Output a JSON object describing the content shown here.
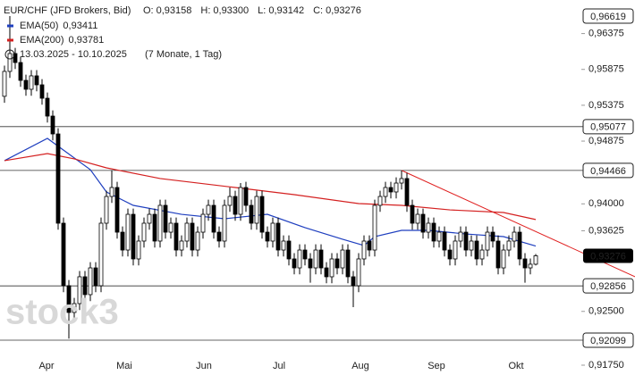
{
  "chart_data": {
    "type": "candlestick",
    "title": "EUR/CHF (JFD Brokers, Bid)",
    "ohlc_header": [
      {
        "key": "O:",
        "value": 0.93158,
        "label": "0,93158"
      },
      {
        "key": "H:",
        "value": 0.933,
        "label": "0,93300"
      },
      {
        "key": "L:",
        "value": 0.93142,
        "label": "0,93142"
      },
      {
        "key": "C:",
        "value": 0.93276,
        "label": "0,93276"
      }
    ],
    "date_range": "13.03.2025 - 10.10.2025",
    "period": "(7 Monate, 1 Tag)",
    "watermark": "stock3",
    "x_labels": [
      "Apr",
      "Mai",
      "Jun",
      "Jul",
      "Aug",
      "Sep",
      "Okt"
    ],
    "ylim": [
      0.91613,
      0.96843
    ],
    "yticks": [
      {
        "value": 0.96375,
        "label": "0,96375"
      },
      {
        "value": 0.95875,
        "label": "0,95875"
      },
      {
        "value": 0.95375,
        "label": "0,95375"
      },
      {
        "value": 0.94875,
        "label": "0,94875"
      },
      {
        "value": 0.94,
        "label": "0,94000"
      },
      {
        "value": 0.93625,
        "label": "0,93625"
      },
      {
        "value": 0.925,
        "label": "0,92500"
      },
      {
        "value": 0.9175,
        "label": "0,91750"
      }
    ],
    "levels": [
      {
        "value": 0.96619,
        "label": "0,96619",
        "line": false
      },
      {
        "value": 0.95077,
        "label": "0,95077",
        "line": true
      },
      {
        "value": 0.94466,
        "label": "0,94466",
        "line": true
      },
      {
        "value": 0.92856,
        "label": "0,92856",
        "line": true
      },
      {
        "value": 0.92099,
        "label": "0,92099",
        "line": true
      }
    ],
    "last_price": {
      "value": 0.93276,
      "label": "0,93276"
    },
    "up_color": "#ffffff",
    "down_color": "#000000",
    "open": [
      0.955,
      0.95847,
      0.96096,
      0.95971,
      0.95722,
      0.95598,
      0.95785,
      0.9566,
      0.95473,
      0.95224,
      0.94975,
      0.9373,
      0.92858,
      0.92485,
      0.92609,
      0.92983,
      0.92734,
      0.93107,
      0.92858,
      0.9373,
      0.94103,
      0.94228,
      0.93605,
      0.93356,
      0.93854,
      0.93232,
      0.93481,
      0.9373,
      0.93854,
      0.93481,
      0.93979,
      0.93605,
      0.9373,
      0.93356,
      0.93481,
      0.9373,
      0.93356,
      0.93605,
      0.93854,
      0.93979,
      0.93605,
      0.93481,
      0.93979,
      0.94103,
      0.93854,
      0.94228,
      0.93979,
      0.9373,
      0.94103,
      0.93605,
      0.93481,
      0.9373,
      0.93356,
      0.93481,
      0.93232,
      0.93107,
      0.93356,
      0.93232,
      0.93107,
      0.93356,
      0.93107,
      0.92983,
      0.93232,
      0.93107,
      0.93356,
      0.92983,
      0.92858,
      0.93232,
      0.93481,
      0.93356,
      0.93979,
      0.94103,
      0.94228,
      0.94166,
      0.9429,
      0.94353,
      0.93979,
      0.9373,
      0.93854,
      0.93605,
      0.9373,
      0.93481,
      0.93605,
      0.93356,
      0.93232,
      0.93481,
      0.93605,
      0.93356,
      0.93481,
      0.93232,
      0.93356,
      0.93605,
      0.93481,
      0.93107,
      0.93356,
      0.93481,
      0.93605,
      0.93232,
      0.93107,
      0.93158
    ],
    "high": [
      0.95927,
      0.96619,
      0.96176,
      0.96051,
      0.95802,
      0.95865,
      0.95865,
      0.9574,
      0.95553,
      0.95304,
      0.95055,
      0.9381,
      0.92938,
      0.92689,
      0.93063,
      0.93063,
      0.93187,
      0.93187,
      0.9381,
      0.94183,
      0.94466,
      0.94308,
      0.93685,
      0.93934,
      0.93934,
      0.93561,
      0.9381,
      0.93934,
      0.93934,
      0.94059,
      0.94059,
      0.9381,
      0.9381,
      0.93561,
      0.9381,
      0.9381,
      0.93685,
      0.93934,
      0.94059,
      0.94059,
      0.93685,
      0.94059,
      0.94228,
      0.94183,
      0.9429,
      0.94308,
      0.94059,
      0.94183,
      0.94183,
      0.93685,
      0.9381,
      0.9381,
      0.93561,
      0.93561,
      0.93312,
      0.93436,
      0.93436,
      0.93312,
      0.93436,
      0.93436,
      0.93187,
      0.93312,
      0.93312,
      0.93436,
      0.93436,
      0.93063,
      0.93312,
      0.93561,
      0.93561,
      0.94059,
      0.94183,
      0.94308,
      0.94308,
      0.9437,
      0.94466,
      0.94433,
      0.94059,
      0.93934,
      0.93934,
      0.9381,
      0.9381,
      0.93685,
      0.93685,
      0.93436,
      0.93561,
      0.93685,
      0.93685,
      0.93561,
      0.93561,
      0.93436,
      0.93685,
      0.93685,
      0.93561,
      0.93436,
      0.93561,
      0.93685,
      0.93685,
      0.93312,
      0.93238,
      0.933
    ],
    "low": [
      0.9541,
      0.95757,
      0.95881,
      0.95632,
      0.95508,
      0.95508,
      0.9557,
      0.95383,
      0.95134,
      0.94885,
      0.9364,
      0.92768,
      0.9212,
      0.92395,
      0.92519,
      0.92644,
      0.92644,
      0.92768,
      0.92768,
      0.9364,
      0.94013,
      0.93515,
      0.93266,
      0.93266,
      0.93142,
      0.93142,
      0.93391,
      0.9364,
      0.93391,
      0.93391,
      0.93515,
      0.93515,
      0.93266,
      0.93266,
      0.93391,
      0.93266,
      0.93266,
      0.93515,
      0.93764,
      0.93515,
      0.93391,
      0.93391,
      0.93889,
      0.93764,
      0.93764,
      0.93889,
      0.9364,
      0.9364,
      0.93515,
      0.93391,
      0.93391,
      0.93266,
      0.93266,
      0.93142,
      0.93017,
      0.93017,
      0.93142,
      0.929,
      0.93017,
      0.93017,
      0.92893,
      0.92893,
      0.93017,
      0.93017,
      0.92893,
      0.9256,
      0.92768,
      0.93142,
      0.93266,
      0.93266,
      0.93889,
      0.94013,
      0.94076,
      0.94076,
      0.942,
      0.93889,
      0.9364,
      0.9364,
      0.93515,
      0.93515,
      0.93391,
      0.93391,
      0.93266,
      0.93142,
      0.93142,
      0.93391,
      0.93266,
      0.93266,
      0.93142,
      0.93142,
      0.93266,
      0.93391,
      0.93017,
      0.93017,
      0.93266,
      0.93391,
      0.93142,
      0.929,
      0.93017,
      0.93142
    ],
    "close": [
      0.95847,
      0.96096,
      0.95971,
      0.95722,
      0.95598,
      0.95785,
      0.9566,
      0.95473,
      0.95224,
      0.94975,
      0.9373,
      0.92858,
      0.92485,
      0.92609,
      0.92983,
      0.92734,
      0.93107,
      0.92858,
      0.9373,
      0.94103,
      0.94228,
      0.93605,
      0.93356,
      0.93854,
      0.93232,
      0.93481,
      0.9373,
      0.93854,
      0.93481,
      0.93979,
      0.93605,
      0.9373,
      0.93356,
      0.93481,
      0.9373,
      0.93356,
      0.93605,
      0.93854,
      0.93979,
      0.93605,
      0.93481,
      0.93979,
      0.94103,
      0.93854,
      0.94228,
      0.93979,
      0.9373,
      0.94103,
      0.93605,
      0.93481,
      0.9373,
      0.93356,
      0.93481,
      0.93232,
      0.93107,
      0.93356,
      0.93232,
      0.93107,
      0.93356,
      0.93107,
      0.92983,
      0.93232,
      0.93107,
      0.93356,
      0.92983,
      0.92858,
      0.93232,
      0.93481,
      0.93356,
      0.93979,
      0.94103,
      0.94228,
      0.94166,
      0.9429,
      0.94353,
      0.93979,
      0.9373,
      0.93854,
      0.93605,
      0.9373,
      0.93481,
      0.93605,
      0.93356,
      0.93232,
      0.93481,
      0.93605,
      0.93356,
      0.93481,
      0.93232,
      0.93356,
      0.93605,
      0.93481,
      0.93107,
      0.93356,
      0.93481,
      0.93605,
      0.93232,
      0.93107,
      0.93158,
      0.93276
    ],
    "lines": [
      {
        "name": "EMA(50)",
        "color": "#1f3fbf",
        "legend_value": {
          "value": 0.93411,
          "label": "0,93411"
        },
        "x": [
          0,
          8,
          16,
          19,
          24,
          33,
          41,
          49,
          56,
          63,
          67,
          69,
          74,
          79,
          86,
          93,
          99
        ],
        "values": [
          0.94602,
          0.94913,
          0.94477,
          0.94166,
          0.93979,
          0.93854,
          0.93792,
          0.93854,
          0.93668,
          0.93506,
          0.93419,
          0.93543,
          0.9363,
          0.9363,
          0.9358,
          0.93543,
          0.93411
        ]
      },
      {
        "name": "EMA(200)",
        "color": "#d42020",
        "legend_value": {
          "value": 0.93781,
          "label": "0,93781"
        },
        "x": [
          0,
          8,
          13,
          19,
          29,
          43,
          54,
          66,
          74,
          83,
          93,
          99
        ],
        "values": [
          0.94602,
          0.94701,
          0.94627,
          0.94502,
          0.94353,
          0.94228,
          0.94128,
          0.94004,
          0.93979,
          0.93916,
          0.93879,
          0.93781
        ]
      }
    ],
    "trendline": {
      "color": "#e02020",
      "x": [
        74,
        117.5
      ],
      "values": [
        0.94466,
        0.92983
      ]
    }
  }
}
